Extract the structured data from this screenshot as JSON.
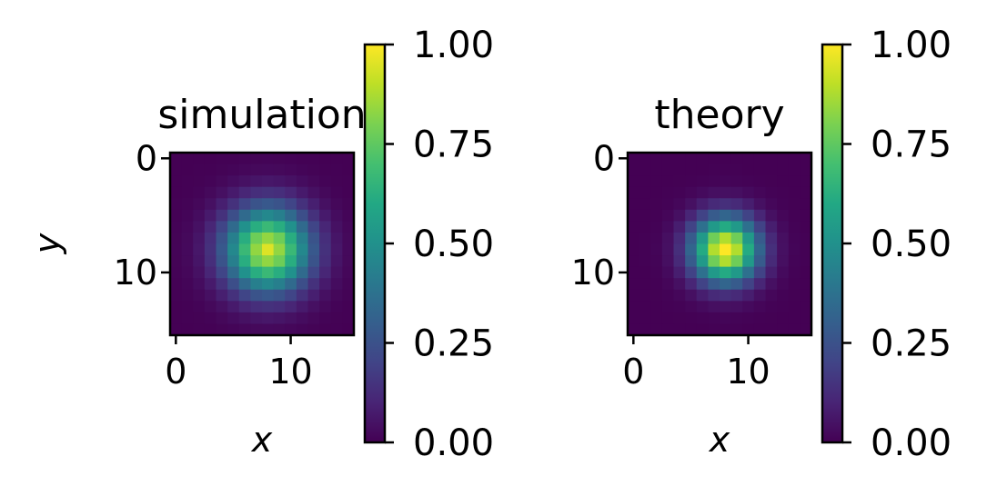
{
  "chart_data": [
    {
      "type": "heatmap",
      "title": "simulation",
      "xlabel": "x",
      "ylabel": "y",
      "grid_size": 16,
      "center": [
        8,
        8
      ],
      "sigma": 2.6,
      "peak": 0.9,
      "xlim": [
        -0.5,
        15.5
      ],
      "ylim": [
        15.5,
        -0.5
      ],
      "xticks": [
        0,
        10
      ],
      "yticks": [
        0,
        10
      ],
      "colorbar": {
        "range": [
          0,
          1
        ],
        "ticks": [
          "0.00",
          "0.25",
          "0.50",
          "0.75",
          "1.00"
        ]
      },
      "colormap": "viridis",
      "grid": false
    },
    {
      "type": "heatmap",
      "title": "theory",
      "xlabel": "x",
      "ylabel": "",
      "grid_size": 16,
      "center": [
        8,
        8
      ],
      "sigma": 2.0,
      "peak": 1.0,
      "xlim": [
        -0.5,
        15.5
      ],
      "ylim": [
        15.5,
        -0.5
      ],
      "xticks": [
        0,
        10
      ],
      "yticks": [
        0,
        10
      ],
      "colorbar": {
        "range": [
          0,
          1
        ],
        "ticks": [
          "0.00",
          "0.25",
          "0.50",
          "0.75",
          "1.00"
        ]
      },
      "colormap": "viridis",
      "grid": false
    }
  ]
}
